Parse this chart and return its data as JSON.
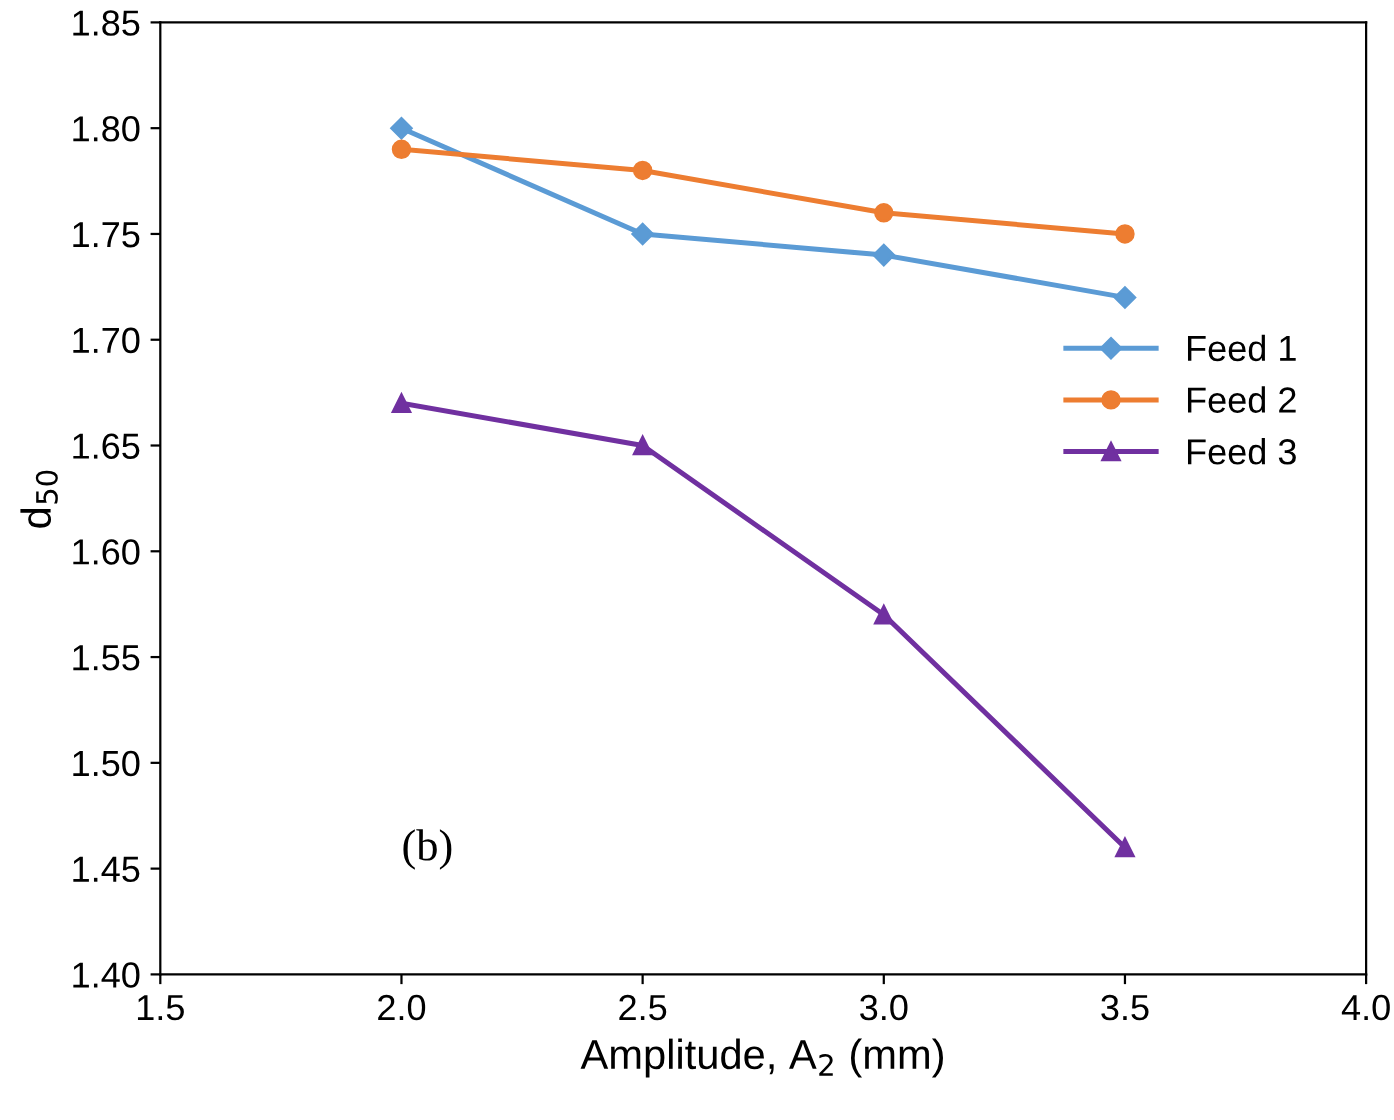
{
  "chart_data": {
    "type": "line",
    "xlabel": "Amplitude, A$_{2}$ (mm)",
    "ylabel": "d$_{50}$",
    "xlim": [
      1.5,
      4.0
    ],
    "xticks": [
      1.5,
      {
        "value": 2.0,
        "label": "2.0"
      },
      2.5,
      {
        "value": 3.0,
        "label": "3.0"
      },
      3.5,
      {
        "value": 4.0,
        "label": "4.0"
      }
    ],
    "ylim": [
      1.4,
      1.85
    ],
    "yticks": [
      {
        "value": 1.4,
        "label": "1.40"
      },
      1.45,
      {
        "value": 1.5,
        "label": "1.50"
      },
      1.55,
      {
        "value": 1.6,
        "label": "1.60"
      },
      1.65,
      {
        "value": 1.7,
        "label": "1.70"
      },
      1.75,
      {
        "value": 1.8,
        "label": "1.80"
      },
      1.85
    ],
    "x": [
      2.0,
      2.5,
      3.0,
      3.5
    ],
    "series": [
      {
        "name": "Feed 1",
        "color": "#5b9bd5",
        "marker": "diamond",
        "values": [
          1.8,
          1.75,
          1.74,
          1.72
        ]
      },
      {
        "name": "Feed 2",
        "color": "#ed7d31",
        "marker": "circle",
        "values": [
          1.79,
          1.78,
          1.76,
          1.75
        ]
      },
      {
        "name": "Feed 3",
        "color": "#7030a0",
        "marker": "triangle",
        "values": [
          1.67,
          1.65,
          1.57,
          1.46
        ]
      }
    ],
    "legend": "right",
    "grid": false,
    "line_style": "solid",
    "annotations": [
      "(b)"
    ]
  }
}
